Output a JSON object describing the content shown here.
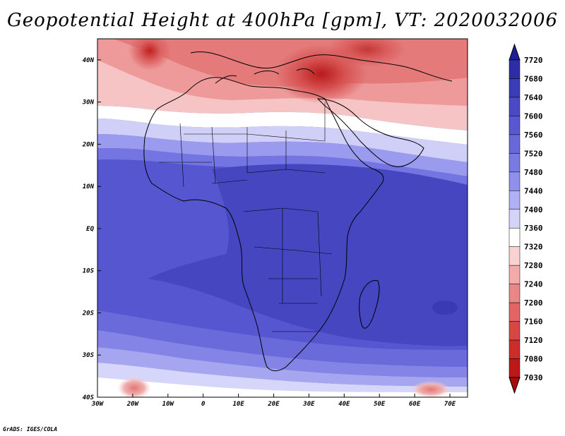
{
  "title": "Geopotential Height at 400hPa [gpm], VT: 2020032006",
  "credit": "GrADS: IGES/COLA",
  "map": {
    "lon_range": [
      -30,
      75
    ],
    "lat_range": [
      -40,
      45
    ],
    "x_ticks": [
      {
        "lon": -30,
        "label": "30W"
      },
      {
        "lon": -20,
        "label": "20W"
      },
      {
        "lon": -10,
        "label": "10W"
      },
      {
        "lon": 0,
        "label": "0"
      },
      {
        "lon": 10,
        "label": "10E"
      },
      {
        "lon": 20,
        "label": "20E"
      },
      {
        "lon": 30,
        "label": "30E"
      },
      {
        "lon": 40,
        "label": "40E"
      },
      {
        "lon": 50,
        "label": "50E"
      },
      {
        "lon": 60,
        "label": "60E"
      },
      {
        "lon": 70,
        "label": "70E"
      }
    ],
    "y_ticks": [
      {
        "lat": 40,
        "label": "40N"
      },
      {
        "lat": 30,
        "label": "30N"
      },
      {
        "lat": 20,
        "label": "20N"
      },
      {
        "lat": 10,
        "label": "10N"
      },
      {
        "lat": 0,
        "label": "EQ"
      },
      {
        "lat": -10,
        "label": "10S"
      },
      {
        "lat": -20,
        "label": "20S"
      },
      {
        "lat": -30,
        "label": "30S"
      },
      {
        "lat": -40,
        "label": "40S"
      }
    ]
  },
  "colorbar": {
    "labels": [
      "7720",
      "7680",
      "7640",
      "7600",
      "7560",
      "7520",
      "7480",
      "7440",
      "7400",
      "7360",
      "7320",
      "7280",
      "7240",
      "7200",
      "7160",
      "7120",
      "7080",
      "7030"
    ],
    "colors_top_to_bottom": [
      "#1e1e96",
      "#2d2da8",
      "#3c3cb8",
      "#4a4ac6",
      "#5858d2",
      "#6868dc",
      "#7a7ae4",
      "#9090ec",
      "#b0b0f4",
      "#d4d4fa",
      "#ffffff",
      "#fad2d2",
      "#f2aaaa",
      "#ea8686",
      "#e26464",
      "#d84646",
      "#cc2c2c",
      "#bb1818",
      "#a80c0c"
    ]
  }
}
